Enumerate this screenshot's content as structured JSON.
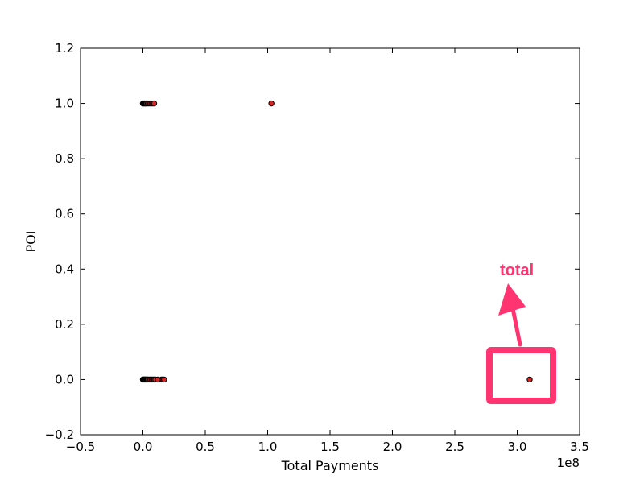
{
  "chart_data": {
    "type": "scatter",
    "xlabel": "Total Payments",
    "ylabel": "POI",
    "x_offset_text": "1e8",
    "xlim": [
      -0.5,
      3.5
    ],
    "ylim": [
      -0.2,
      1.2
    ],
    "xticks": [
      -0.5,
      0.0,
      0.5,
      1.0,
      1.5,
      2.0,
      2.5,
      3.0,
      3.5
    ],
    "xtick_labels": [
      "−0.5",
      "0.0",
      "0.5",
      "1.0",
      "1.5",
      "2.0",
      "2.5",
      "3.0",
      "3.5"
    ],
    "yticks": [
      -0.2,
      0.0,
      0.2,
      0.4,
      0.6,
      0.8,
      1.0,
      1.2
    ],
    "ytick_labels": [
      "−0.2",
      "0.0",
      "0.2",
      "0.4",
      "0.6",
      "0.8",
      "1.0",
      "1.2"
    ],
    "grid": false,
    "marker_color": "#d62728",
    "marker_edge_color": "#000000",
    "series": [
      {
        "x": [
          0.0,
          0.005,
          0.01,
          0.015,
          0.02,
          0.025,
          0.03,
          0.04,
          0.05,
          0.06,
          0.07,
          0.08,
          0.09,
          1.03
        ],
        "y": [
          1,
          1,
          1,
          1,
          1,
          1,
          1,
          1,
          1,
          1,
          1,
          1,
          1,
          1
        ]
      },
      {
        "x": [
          0.0,
          0.005,
          0.01,
          0.015,
          0.02,
          0.025,
          0.03,
          0.035,
          0.04,
          0.05,
          0.06,
          0.07,
          0.08,
          0.09,
          0.1,
          0.12,
          0.15,
          0.16,
          0.17,
          3.1
        ],
        "y": [
          0,
          0,
          0,
          0,
          0,
          0,
          0,
          0,
          0,
          0,
          0,
          0,
          0,
          0,
          0,
          0,
          0,
          0,
          0,
          0
        ]
      }
    ],
    "annotation": {
      "text": "total",
      "color": "#ff3470",
      "highlighted_point": {
        "x": 3.1,
        "y": 0
      }
    }
  }
}
